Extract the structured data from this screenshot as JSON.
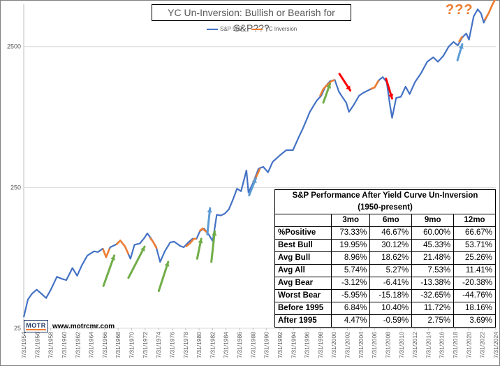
{
  "chart_data": {
    "type": "line",
    "title": "YC Un-Inversion: Bullish or Bearish for S&P???",
    "annotation": "???",
    "yscale": "log",
    "ylim": [
      25,
      5000
    ],
    "yticks": [
      25,
      250,
      2500
    ],
    "ytick_labels": [
      "25",
      "250",
      "2500"
    ],
    "xlim": [
      1954.58,
      2024.58
    ],
    "xtick_labels": [
      "7/31/1954",
      "7/31/1956",
      "7/31/1958",
      "7/31/1960",
      "7/31/1962",
      "7/31/1964",
      "7/31/1966",
      "7/31/1968",
      "7/31/1970",
      "7/31/1972",
      "7/31/1974",
      "7/31/1976",
      "7/31/1978",
      "7/31/1980",
      "7/31/1982",
      "7/31/1984",
      "7/31/1986",
      "7/31/1988",
      "7/31/1990",
      "7/31/1992",
      "7/31/1994",
      "7/31/1996",
      "7/31/1998",
      "7/31/2000",
      "7/31/2002",
      "7/31/2004",
      "7/31/2006",
      "7/31/2008",
      "7/31/2010",
      "7/31/2012",
      "7/31/2014",
      "7/31/2016",
      "7/31/2018",
      "7/31/2020",
      "7/31/2022",
      "7/31/2024"
    ],
    "legend": [
      {
        "name": "S&P 500",
        "color": "#4472c4"
      },
      {
        "name": "YC Inversion",
        "color": "#ed7d31"
      }
    ],
    "series": [
      {
        "name": "S&P 500",
        "color": "#4472c4",
        "x": [
          1954.58,
          1955.2,
          1955.8,
          1956.5,
          1957.2,
          1957.9,
          1958.6,
          1959.5,
          1960.3,
          1960.9,
          1961.8,
          1962.5,
          1963.2,
          1964.0,
          1965.0,
          1965.6,
          1966.3,
          1966.8,
          1967.4,
          1968.2,
          1968.9,
          1969.6,
          1970.4,
          1971.0,
          1971.8,
          1972.5,
          1972.9,
          1973.5,
          1974.2,
          1974.8,
          1975.5,
          1976.3,
          1976.9,
          1977.8,
          1978.3,
          1979.0,
          1979.6,
          1980.2,
          1980.7,
          1981.3,
          1982.0,
          1982.6,
          1983.2,
          1983.8,
          1984.4,
          1985.0,
          1985.6,
          1986.2,
          1986.8,
          1987.6,
          1987.9,
          1988.6,
          1989.4,
          1990.1,
          1990.8,
          1991.5,
          1992.5,
          1993.5,
          1994.5,
          1995.3,
          1996.0,
          1997.0,
          1998.0,
          1998.7,
          1999.3,
          2000.0,
          2000.7,
          2001.3,
          2001.8,
          2002.4,
          2002.8,
          2003.5,
          2004.3,
          2005.0,
          2005.8,
          2006.6,
          2007.3,
          2007.8,
          2008.4,
          2008.9,
          2009.2,
          2009.8,
          2010.5,
          2011.2,
          2011.8,
          2012.6,
          2013.5,
          2014.4,
          2015.3,
          2016.0,
          2016.8,
          2017.6,
          2018.3,
          2018.95,
          2019.6,
          2020.2,
          2020.6,
          2021.3,
          2021.9,
          2022.4,
          2022.8,
          2023.5,
          2024.1,
          2024.58
        ],
        "y": [
          30,
          40,
          44,
          47,
          44,
          41,
          47,
          58,
          56,
          55,
          67,
          59,
          70,
          82,
          88,
          87,
          92,
          80,
          94,
          98,
          105,
          95,
          78,
          98,
          100,
          110,
          118,
          108,
          95,
          74,
          88,
          102,
          103,
          96,
          94,
          102,
          108,
          108,
          122,
          128,
          116,
          104,
          160,
          158,
          163,
          175,
          205,
          245,
          235,
          330,
          230,
          270,
          340,
          350,
          320,
          380,
          420,
          460,
          460,
          560,
          660,
          860,
          1030,
          1120,
          1300,
          1420,
          1450,
          1200,
          1100,
          1000,
          860,
          960,
          1120,
          1180,
          1230,
          1280,
          1450,
          1520,
          1400,
          950,
          780,
          1080,
          1100,
          1300,
          1150,
          1400,
          1620,
          1950,
          2100,
          1950,
          2150,
          2500,
          2700,
          2550,
          2900,
          3100,
          2800,
          4100,
          4600,
          4300,
          3700,
          4300,
          5000,
          5500
        ]
      },
      {
        "name": "YC Inversion",
        "color": "#ed7d31",
        "segments": [
          {
            "x": [
              1966.3,
              1966.8,
              1967.3
            ],
            "y": [
              92,
              80,
              92
            ]
          },
          {
            "x": [
              1968.3,
              1968.9,
              1969.6,
              1970.1
            ],
            "y": [
              98,
              105,
              95,
              84
            ]
          },
          {
            "x": [
              1973.3,
              1973.8,
              1974.3
            ],
            "y": [
              110,
              102,
              92
            ]
          },
          {
            "x": [
              1978.6,
              1979.2,
              1979.8,
              1980.2
            ],
            "y": [
              95,
              100,
              108,
              108
            ]
          },
          {
            "x": [
              1980.6,
              1981.1,
              1981.7
            ],
            "y": [
              122,
              128,
              120
            ]
          },
          {
            "x": [
              1988.6,
              1989.1,
              1989.6
            ],
            "y": [
              270,
              300,
              340
            ]
          },
          {
            "x": [
              1998.5,
              1999.0,
              1999.6,
              2000.2,
              2000.7
            ],
            "y": [
              1110,
              1250,
              1340,
              1420,
              1450
            ]
          },
          {
            "x": [
              2006.0,
              2006.6,
              2007.2
            ],
            "y": [
              1250,
              1280,
              1440
            ]
          },
          {
            "x": [
              2019.1,
              2019.6
            ],
            "y": [
              2700,
              2950
            ]
          },
          {
            "x": [
              2022.9,
              2023.5,
              2024.1,
              2024.58
            ],
            "y": [
              3850,
              4300,
              5000,
              5500
            ]
          }
        ]
      }
    ],
    "arrows": [
      {
        "color": "green",
        "from": [
          1966.4,
          50
        ],
        "to": [
          1968.0,
          82
        ],
        "direction": "up"
      },
      {
        "color": "green",
        "from": [
          1970.1,
          57
        ],
        "to": [
          1972.5,
          95
        ],
        "direction": "up"
      },
      {
        "color": "green",
        "from": [
          1974.6,
          46
        ],
        "to": [
          1976.0,
          74
        ],
        "direction": "up"
      },
      {
        "color": "green",
        "from": [
          1980.3,
          78
        ],
        "to": [
          1980.9,
          108
        ],
        "direction": "up"
      },
      {
        "color": "green",
        "from": [
          1982.4,
          74
        ],
        "to": [
          1982.9,
          122
        ],
        "direction": "up"
      },
      {
        "color": "green",
        "from": [
          1999.0,
          1000
        ],
        "to": [
          2000.0,
          1360
        ],
        "direction": "up"
      },
      {
        "color": "blue",
        "from": [
          1981.8,
          116
        ],
        "to": [
          1982.2,
          178
        ],
        "direction": "up"
      },
      {
        "color": "blue",
        "from": [
          1988.0,
          220
        ],
        "to": [
          1989.0,
          290
        ],
        "direction": "up"
      },
      {
        "color": "blue",
        "from": [
          2018.9,
          2000
        ],
        "to": [
          2019.6,
          2600
        ],
        "direction": "up"
      },
      {
        "color": "red",
        "from": [
          2001.4,
          1600
        ],
        "to": [
          2003.0,
          1220
        ],
        "direction": "down"
      },
      {
        "color": "red",
        "from": [
          2008.3,
          1480
        ],
        "to": [
          2009.2,
          1070
        ],
        "direction": "down"
      }
    ]
  },
  "perf_table": {
    "caption": "S&P Performance After Yield Curve Un-Inversion",
    "subcaption": "(1950-present)",
    "columns": [
      "",
      "3mo",
      "6mo",
      "9mo",
      "12mo"
    ],
    "rows": [
      [
        "%Positive",
        "73.33%",
        "46.67%",
        "60.00%",
        "66.67%"
      ],
      [
        "Best Bull",
        "19.95%",
        "30.12%",
        "45.33%",
        "53.71%"
      ],
      [
        "Avg Bull",
        "8.96%",
        "18.62%",
        "21.48%",
        "25.26%"
      ],
      [
        "Avg All",
        "5.74%",
        "5.27%",
        "7.53%",
        "11.41%"
      ],
      [
        "Avg Bear",
        "-3.12%",
        "-6.41%",
        "-13.38%",
        "-20.38%"
      ],
      [
        "Worst Bear",
        "-5.95%",
        "-15.18%",
        "-32.65%",
        "-44.76%"
      ],
      [
        "Before 1995",
        "6.84%",
        "10.40%",
        "11.72%",
        "18.16%"
      ],
      [
        "After 1995",
        "4.47%",
        "-0.59%",
        "2.75%",
        "3.69%"
      ]
    ]
  },
  "branding": {
    "logo_text": "MOTR",
    "url": "www.motrcmr.com"
  },
  "colors": {
    "sp500": "#4472c4",
    "inversion": "#ed7d31",
    "arrow_green": "#70ad47",
    "arrow_blue": "#5b9bd5",
    "arrow_red": "#ff0000",
    "grid": "#d9d9d9"
  }
}
